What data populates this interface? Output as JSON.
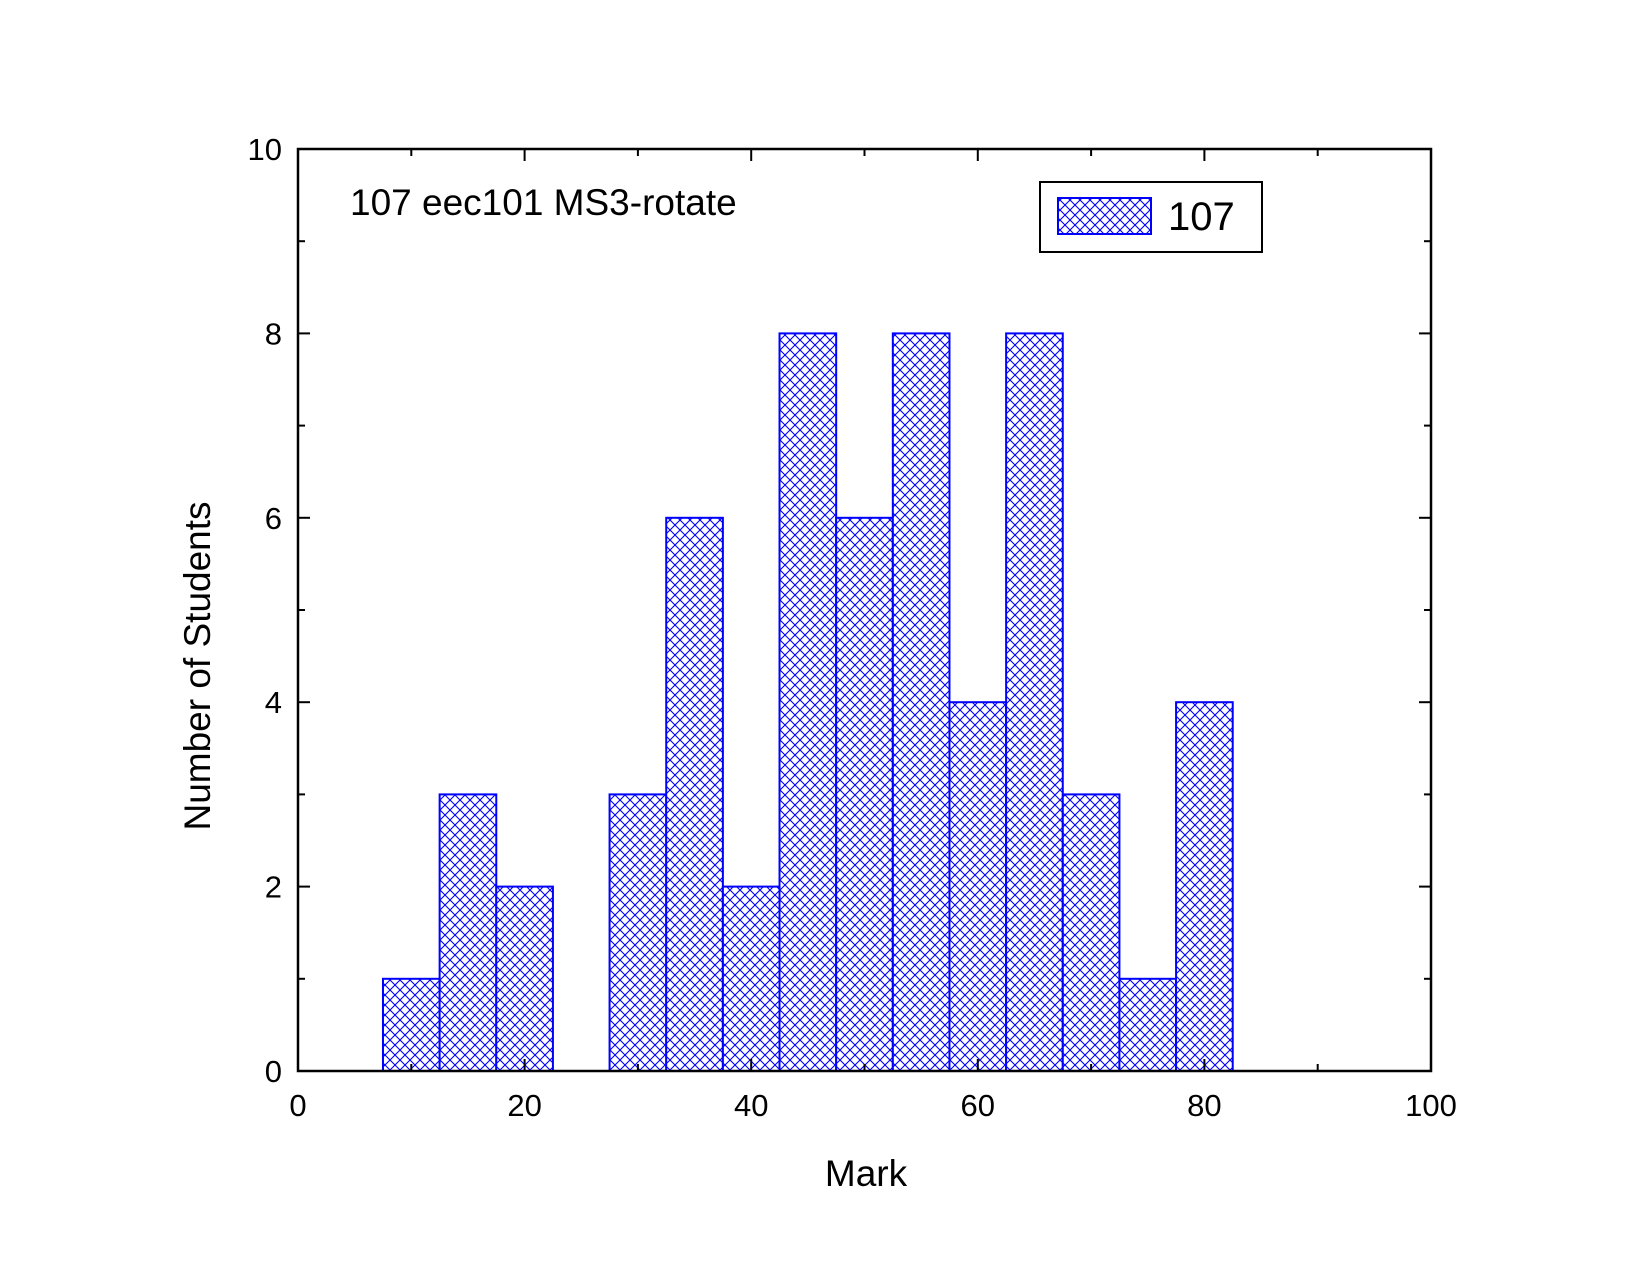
{
  "chart_data": {
    "type": "bar",
    "title": "",
    "annotation": "107 eec101 MS3-rotate",
    "xlabel": "Mark",
    "ylabel": "Number of Students",
    "xlim": [
      0,
      100
    ],
    "ylim": [
      0,
      10
    ],
    "xticks": [
      0,
      20,
      40,
      60,
      80,
      100
    ],
    "yticks": [
      0,
      2,
      4,
      6,
      8,
      10
    ],
    "bin_width": 5,
    "grid": false,
    "legend_position": "top-right",
    "series": [
      {
        "name": "107",
        "color": "#0000ff",
        "fill_pattern": "crosshatch",
        "bin_centers": [
          10,
          15,
          20,
          25,
          30,
          35,
          40,
          45,
          50,
          55,
          60,
          65,
          70,
          75,
          80
        ],
        "values": [
          1,
          3,
          2,
          0,
          3,
          6,
          2,
          8,
          6,
          8,
          4,
          8,
          3,
          1,
          4
        ]
      }
    ]
  }
}
